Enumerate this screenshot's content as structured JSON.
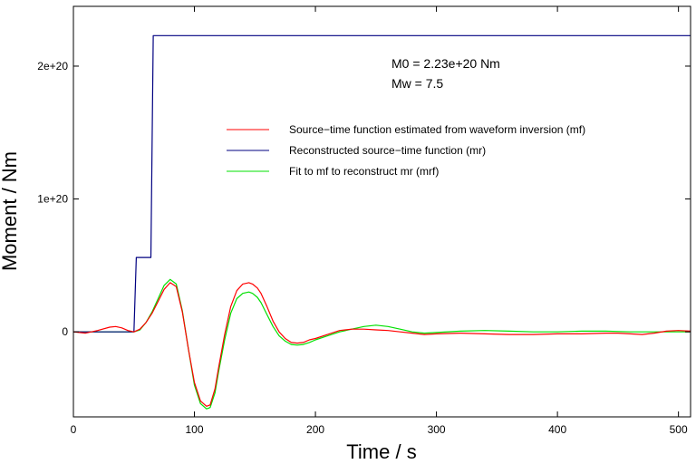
{
  "chart_data": {
    "type": "line",
    "xlabel": "Time / s",
    "ylabel": "Moment / Nm",
    "xlim": [
      0,
      510
    ],
    "ylim": [
      -6.4e+19,
      2.45e+20
    ],
    "x_ticks": [
      0,
      100,
      200,
      300,
      400,
      500
    ],
    "x_tick_labels": [
      "0",
      "100",
      "200",
      "300",
      "400",
      "500"
    ],
    "y_ticks": [
      0,
      1e+20,
      2e+20
    ],
    "y_tick_labels": [
      "0",
      "1e+20",
      "2e+20"
    ],
    "grid": false,
    "legend_position": "center-right",
    "annotations": [
      "M0 = 2.23e+20 Nm",
      "Mw = 7.5"
    ],
    "series": [
      {
        "name": "Source−time function estimated from waveform inversion (mf)",
        "color": "#ff0000",
        "x": [
          0,
          10,
          20,
          30,
          35,
          40,
          45,
          50,
          55,
          60,
          65,
          70,
          75,
          80,
          85,
          90,
          95,
          100,
          105,
          110,
          113,
          117,
          120,
          125,
          130,
          135,
          140,
          145,
          148,
          152,
          155,
          160,
          165,
          170,
          175,
          180,
          185,
          190,
          195,
          200,
          210,
          220,
          230,
          240,
          250,
          260,
          270,
          280,
          290,
          300,
          320,
          340,
          360,
          380,
          400,
          420,
          440,
          450,
          460,
          470,
          480,
          490,
          500,
          510
        ],
        "y": [
          0,
          -1e+18,
          1e+18,
          3.5e+18,
          4e+18,
          3e+18,
          1e+18,
          0,
          2e+18,
          7e+18,
          1.4e+19,
          2.3e+19,
          3.2e+19,
          3.7e+19,
          3.4e+19,
          1.5e+19,
          -1.3e+19,
          -3.8e+19,
          -5.2e+19,
          -5.6e+19,
          -5.5e+19,
          -4.3e+19,
          -2.7e+19,
          -2e+18,
          1.9e+19,
          3.1e+19,
          3.6e+19,
          3.7e+19,
          3.6e+19,
          3.3e+19,
          2.9e+19,
          1.9e+19,
          8e+18,
          0,
          -5e+18,
          -8e+18,
          -8.5e+18,
          -8e+18,
          -6e+18,
          -5e+18,
          -2e+18,
          1e+18,
          2e+18,
          2e+18,
          1.5e+18,
          1e+18,
          0,
          -1e+18,
          -2e+18,
          -1.5e+18,
          -1e+18,
          -1.5e+18,
          -2e+18,
          -2e+18,
          -1.5e+18,
          -1.5e+18,
          -1e+18,
          -1e+18,
          -1.5e+18,
          -2e+18,
          -1e+18,
          5e+17,
          1e+18,
          5e+17
        ]
      },
      {
        "name": "Reconstructed source−time function (mr)",
        "color": "#000080",
        "x": [
          0,
          50,
          52,
          64,
          66,
          510
        ],
        "y": [
          0,
          0,
          5.6e+19,
          5.6e+19,
          2.23e+20,
          2.23e+20
        ]
      },
      {
        "name": "Fit to mf to reconstruct mr (mrf)",
        "color": "#00e000",
        "x": [
          0,
          50,
          55,
          60,
          65,
          70,
          75,
          80,
          85,
          90,
          95,
          100,
          105,
          110,
          113,
          117,
          120,
          125,
          130,
          135,
          140,
          145,
          148,
          152,
          155,
          160,
          165,
          170,
          175,
          180,
          185,
          190,
          195,
          200,
          210,
          220,
          230,
          240,
          250,
          260,
          270,
          280,
          290,
          300,
          320,
          340,
          360,
          380,
          400,
          420,
          440,
          460,
          480,
          500,
          510
        ],
        "y": [
          0,
          0,
          1.5e+18,
          7e+18,
          1.5e+19,
          2.5e+19,
          3.5e+19,
          3.95e+19,
          3.6e+19,
          1.6e+19,
          -1.3e+19,
          -4e+19,
          -5.4e+19,
          -5.8e+19,
          -5.7e+19,
          -4.6e+19,
          -3e+19,
          -6e+18,
          1.4e+19,
          2.5e+19,
          2.9e+19,
          3e+19,
          2.9e+19,
          2.6e+19,
          2.2e+19,
          1.3e+19,
          4e+18,
          -3e+18,
          -7e+18,
          -9.5e+18,
          -1e+19,
          -9.5e+18,
          -8e+18,
          -6e+18,
          -3e+18,
          0,
          2e+18,
          4e+18,
          5e+18,
          4e+18,
          2e+18,
          0,
          -1e+18,
          -5e+17,
          5e+17,
          1e+18,
          5e+17,
          0,
          0,
          5e+17,
          5e+17,
          0,
          0,
          0,
          0
        ]
      }
    ]
  }
}
